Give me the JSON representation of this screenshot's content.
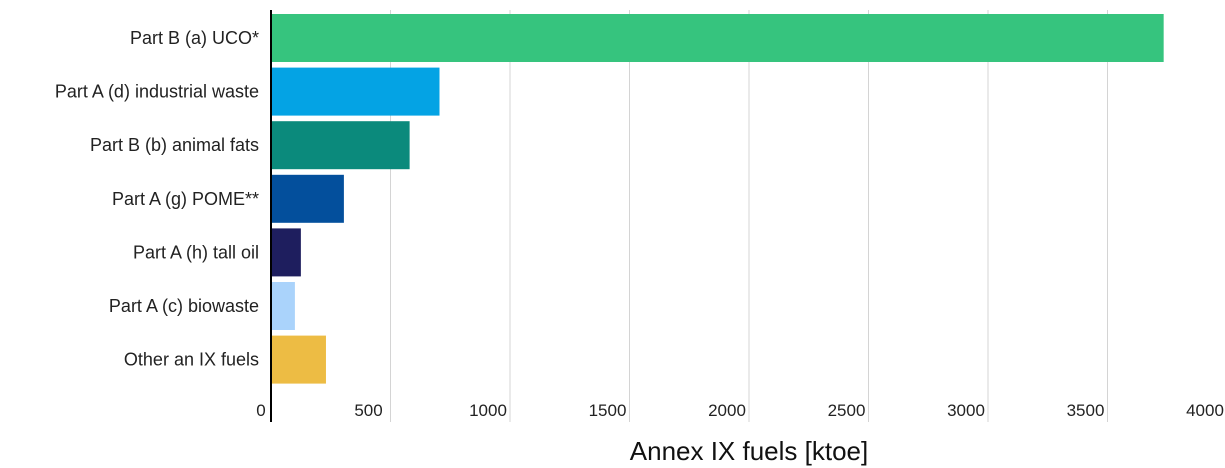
{
  "chart_data": {
    "type": "bar",
    "orientation": "horizontal",
    "categories": [
      "Part B (a) UCO*",
      "Part A (d) industrial waste",
      "Part B (b) animal fats",
      "Part A (g) POME**",
      "Part A (h) tall oil",
      "Part A (c) biowaste",
      "Other an IX fuels"
    ],
    "values": [
      3735,
      705,
      580,
      305,
      125,
      100,
      230
    ],
    "colors": [
      "#36c47e",
      "#04a3e4",
      "#0b8a7c",
      "#034f9c",
      "#1e1e5e",
      "#aad3fb",
      "#edbc44"
    ],
    "xlabel": "Annex IX fuels [ktoe]",
    "ylabel": "",
    "title": "",
    "xlim": [
      0,
      4000
    ],
    "ticks": [
      "0",
      "500",
      "1000",
      "1500",
      "2000",
      "2500",
      "3000",
      "3500",
      "4000"
    ],
    "grid": "vertical",
    "legend": "none"
  }
}
